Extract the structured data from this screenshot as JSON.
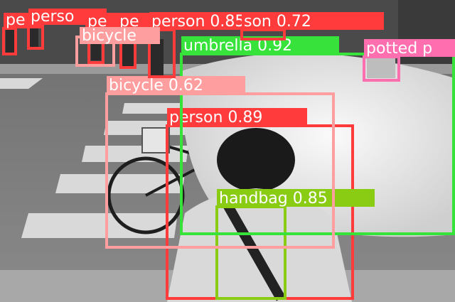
{
  "colors": {
    "person": "#ff3b3b",
    "bicycle": "#ff9e9e",
    "umbrella": "#37e23a",
    "handbag": "#8acb14",
    "potted_plant": "#ff6fb0"
  },
  "detections": [
    {
      "label": "person",
      "score": "0.89",
      "text": "person 0.89"
    },
    {
      "label": "handbag",
      "score": "0.85",
      "text": "handbag 0.85"
    },
    {
      "label": "umbrella",
      "score": "0.92",
      "text": "umbrella 0.92"
    },
    {
      "label": "bicycle",
      "score": "0.62",
      "text": "bicycle 0.62"
    },
    {
      "label": "person",
      "score": "0.85",
      "text": "person 0.85"
    },
    {
      "label": "person",
      "score": "0.72",
      "text": "son 0.72"
    },
    {
      "label": "potted plant",
      "score": "",
      "text": "potted p"
    },
    {
      "label": "person",
      "score": "",
      "text": "pe"
    },
    {
      "label": "person",
      "score": "",
      "text": "perso"
    },
    {
      "label": "person",
      "score": "",
      "text": "pe"
    },
    {
      "label": "person",
      "score": "",
      "text": "pe"
    },
    {
      "label": "bicycle",
      "score": "",
      "text": "bicycle"
    }
  ]
}
